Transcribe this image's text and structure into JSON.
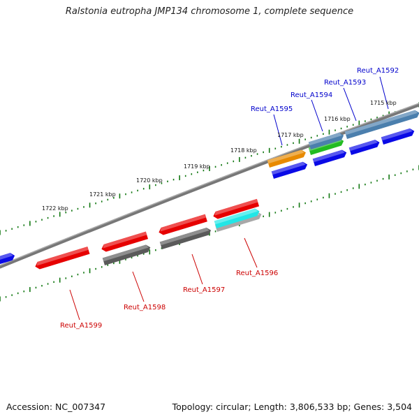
{
  "title": "Ralstonia eutropha JMP134 chromosome 1, complete sequence",
  "footer": {
    "accession": "Accession: NC_007347",
    "summary": "Topology: circular; Length: 3,806,533 bp; Genes: 3,504"
  },
  "scale_labels": [
    "1722 kbp",
    "1721 kbp",
    "1720 kbp",
    "1719 kbp",
    "1718 kbp",
    "1717 kbp",
    "1716 kbp",
    "1715 kbp"
  ],
  "upper_gene_labels": [
    "Reut_A1592",
    "Reut_A1593",
    "Reut_A1594",
    "Reut_A1595"
  ],
  "lower_gene_labels": [
    "Reut_A1596",
    "Reut_A1597",
    "Reut_A1598",
    "Reut_A1599"
  ],
  "colors": {
    "label_top": "#0000cc",
    "label_bottom": "#cc0000",
    "tick": "#117711",
    "backbone": "#777777",
    "gene_blue": "#0a0ae6",
    "gene_red": "#e60000",
    "gene_gray": "#5a5a5a",
    "gene_orange": "#e88a00",
    "gene_steel": "#4b7fad",
    "gene_green": "#22bb22",
    "gene_cyan": "#22e6e6"
  }
}
